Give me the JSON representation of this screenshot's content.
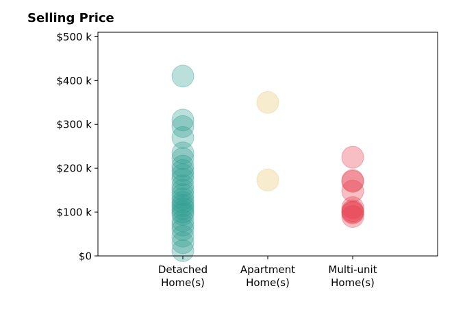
{
  "chart_data": {
    "type": "scatter",
    "title": "Selling Price",
    "xlabel": "",
    "ylabel": "",
    "ylim": [
      0,
      510000
    ],
    "y_ticks": [
      {
        "value": 0,
        "label": "$0"
      },
      {
        "value": 100000,
        "label": "$100 k"
      },
      {
        "value": 200000,
        "label": "$200 k"
      },
      {
        "value": 300000,
        "label": "$300 k"
      },
      {
        "value": 400000,
        "label": "$400 k"
      },
      {
        "value": 500000,
        "label": "$500 k"
      }
    ],
    "categories": [
      {
        "lines": [
          "Detached",
          "Home(s)"
        ]
      },
      {
        "lines": [
          "Apartment",
          "Home(s)"
        ]
      },
      {
        "lines": [
          "Multi-unit",
          "Home(s)"
        ]
      }
    ],
    "grid": false,
    "legend": "none",
    "series": [
      {
        "category_index": 0,
        "color": "#2a9d8f",
        "values": [
          410000,
          310000,
          295000,
          270000,
          235000,
          222000,
          205000,
          195000,
          185000,
          175000,
          160000,
          150000,
          140000,
          130000,
          122000,
          115000,
          108000,
          100000,
          95000,
          80000,
          70000,
          60000,
          45000,
          30000,
          12000
        ]
      },
      {
        "category_index": 1,
        "color": "#e9c46a",
        "values": [
          350000,
          173000
        ]
      },
      {
        "category_index": 2,
        "color": "#e63946",
        "values": [
          225000,
          172000,
          170000,
          148000,
          110000,
          103000,
          100000,
          98000,
          90000
        ]
      }
    ]
  }
}
